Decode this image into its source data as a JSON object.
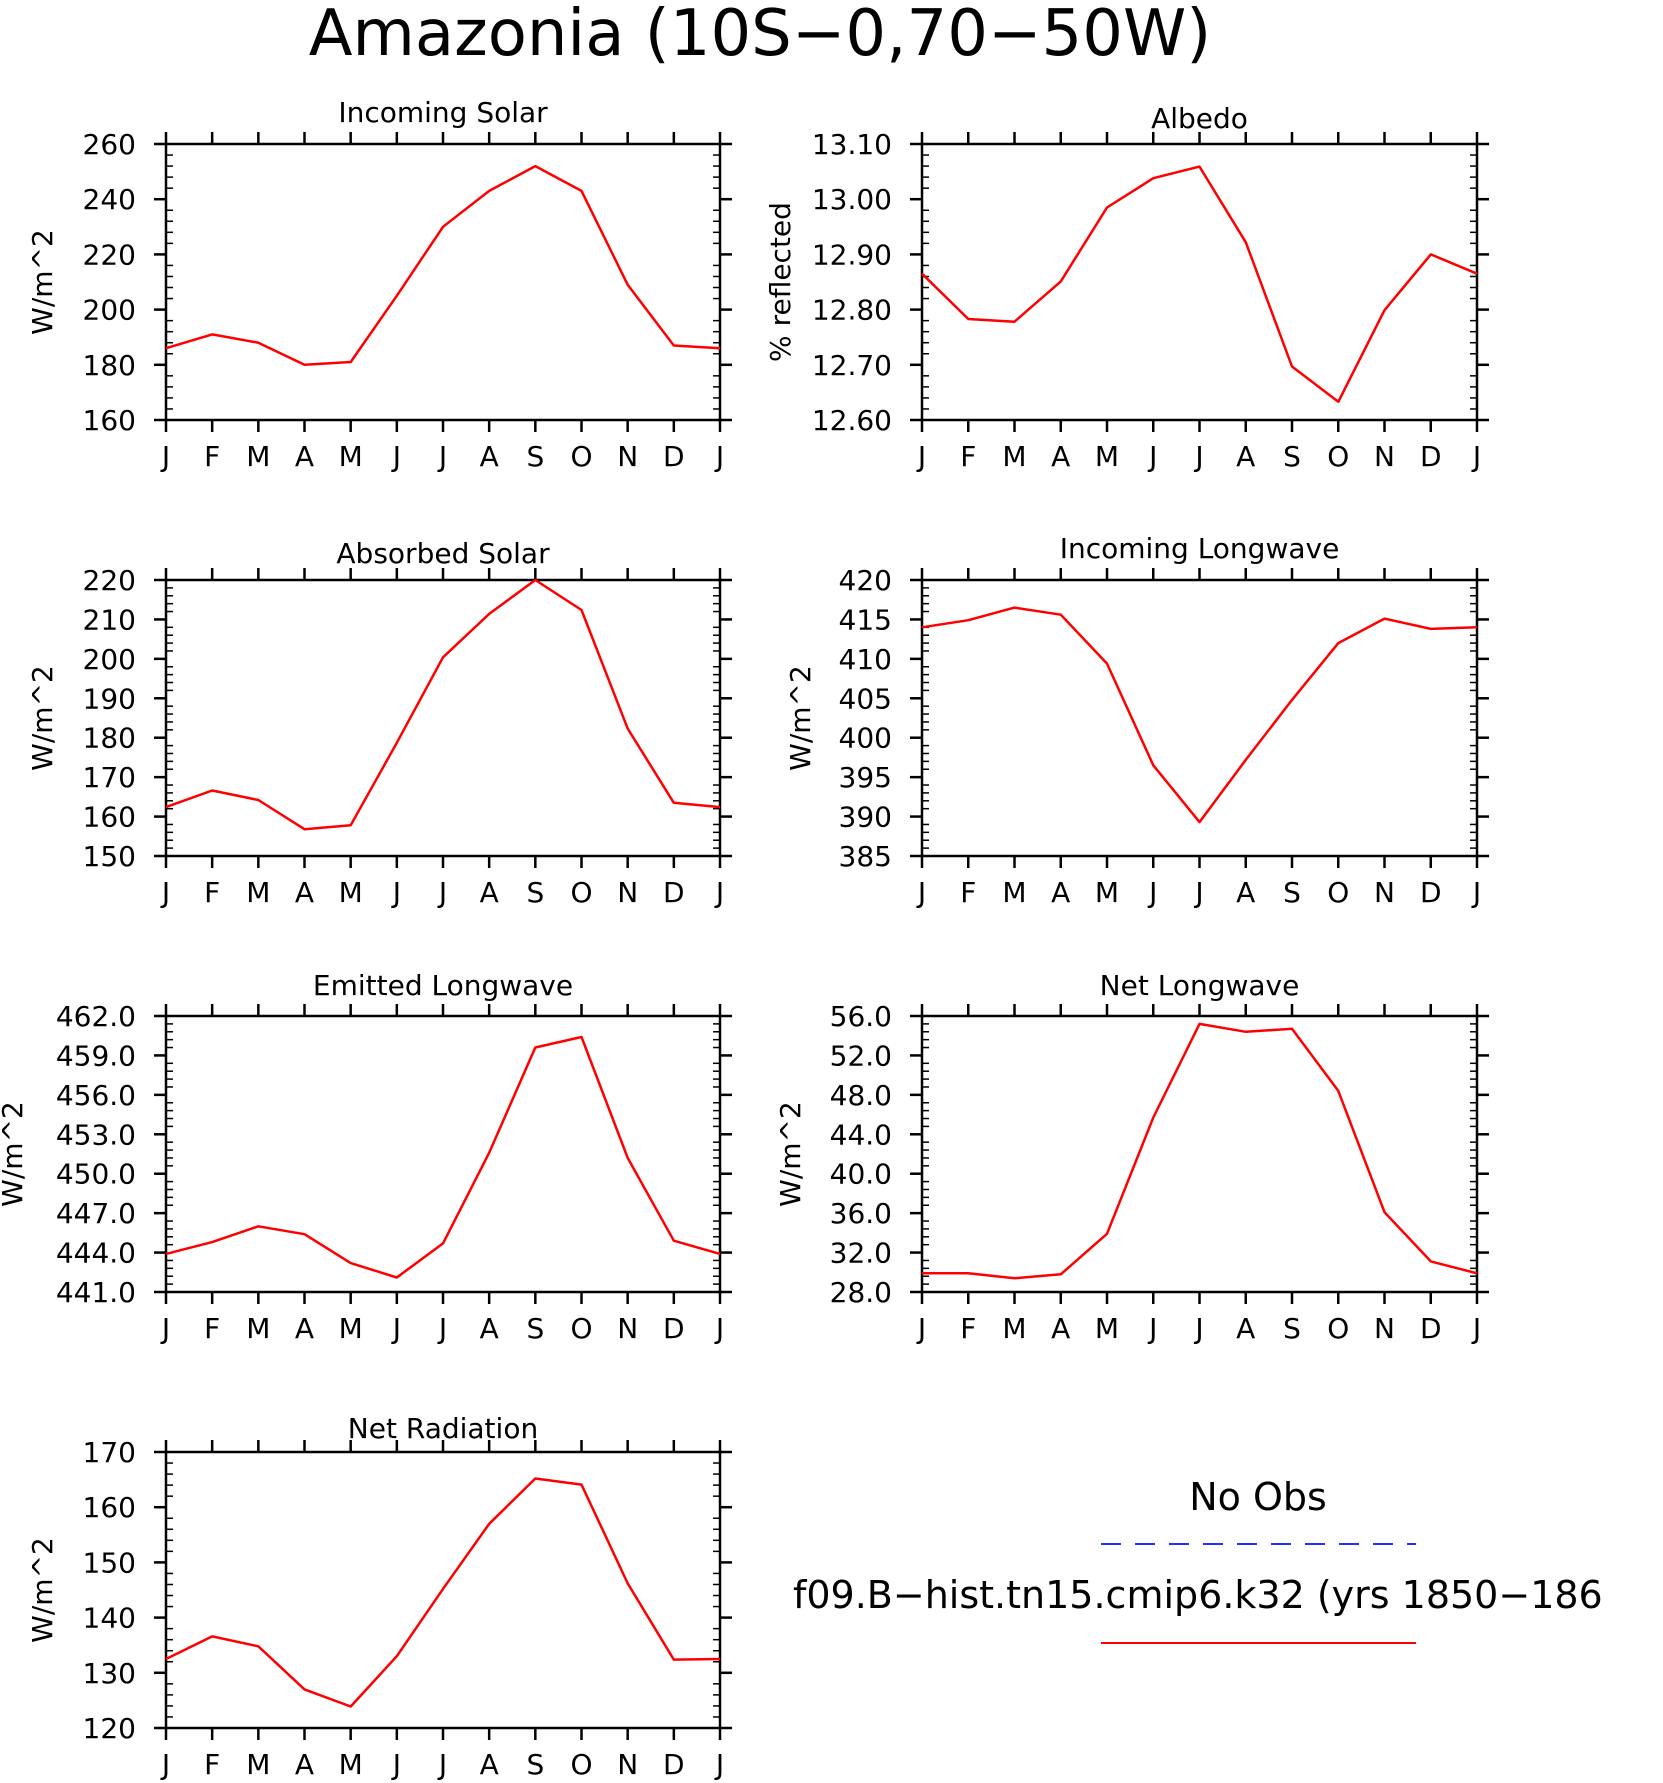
{
  "figure": {
    "title": "Amazonia (10S−0,70−50W)",
    "legend": {
      "entries": [
        {
          "label": "No Obs",
          "color": "#2030ff",
          "dash": "dashed"
        },
        {
          "label": "f09.B−hist.tn15.cmip6.k32 (yrs 1850−186",
          "color": "#ff0000",
          "dash": "solid"
        }
      ]
    }
  },
  "chart_data": [
    {
      "type": "line",
      "title": "Incoming Solar",
      "ylabel": "W/m^2",
      "xlabel": "",
      "categories": [
        "J",
        "F",
        "M",
        "A",
        "M",
        "J",
        "J",
        "A",
        "S",
        "O",
        "N",
        "D",
        "J"
      ],
      "ylim": [
        160,
        260
      ],
      "yticks": [
        "160",
        "180",
        "200",
        "220",
        "240",
        "260"
      ],
      "series": [
        {
          "color": "#ff0000",
          "values": [
            186,
            191,
            188,
            180,
            181,
            205,
            230,
            243,
            252,
            243,
            209,
            187,
            186
          ]
        }
      ]
    },
    {
      "type": "line",
      "title": "Albedo",
      "ylabel": "% reflected",
      "xlabel": "",
      "categories": [
        "J",
        "F",
        "M",
        "A",
        "M",
        "J",
        "J",
        "A",
        "S",
        "O",
        "N",
        "D",
        "J"
      ],
      "ylim": [
        12.6,
        13.1
      ],
      "yticks": [
        "12.60",
        "12.70",
        "12.80",
        "12.90",
        "13.00",
        "13.10"
      ],
      "series": [
        {
          "color": "#ff0000",
          "values": [
            12.865,
            12.783,
            12.778,
            12.851,
            12.985,
            13.038,
            13.059,
            12.922,
            12.697,
            12.633,
            12.799,
            12.9,
            12.865
          ]
        }
      ]
    },
    {
      "type": "line",
      "title": "Absorbed Solar",
      "ylabel": "W/m^2",
      "xlabel": "",
      "categories": [
        "J",
        "F",
        "M",
        "A",
        "M",
        "J",
        "J",
        "A",
        "S",
        "O",
        "N",
        "D",
        "J"
      ],
      "ylim": [
        150,
        220
      ],
      "yticks": [
        "150",
        "160",
        "170",
        "180",
        "190",
        "200",
        "210",
        "220"
      ],
      "series": [
        {
          "color": "#ff0000",
          "values": [
            162.4,
            166.6,
            164.2,
            156.8,
            157.8,
            178.7,
            200.4,
            211.4,
            220,
            212.4,
            182.3,
            163.5,
            162.4
          ]
        }
      ]
    },
    {
      "type": "line",
      "title": "Incoming Longwave",
      "ylabel": "W/m^2",
      "xlabel": "",
      "categories": [
        "J",
        "F",
        "M",
        "A",
        "M",
        "J",
        "J",
        "A",
        "S",
        "O",
        "N",
        "D",
        "J"
      ],
      "ylim": [
        385,
        420
      ],
      "yticks": [
        "385",
        "390",
        "395",
        "400",
        "405",
        "410",
        "415",
        "420"
      ],
      "series": [
        {
          "color": "#ff0000",
          "values": [
            414.0,
            414.9,
            416.5,
            415.6,
            409.4,
            396.5,
            389.3,
            397.2,
            404.8,
            412.0,
            415.1,
            413.8,
            414.0
          ]
        }
      ]
    },
    {
      "type": "line",
      "title": "Emitted Longwave",
      "ylabel": "W/m^2",
      "xlabel": "",
      "categories": [
        "J",
        "F",
        "M",
        "A",
        "M",
        "J",
        "J",
        "A",
        "S",
        "O",
        "N",
        "D",
        "J"
      ],
      "ylim": [
        441,
        462
      ],
      "yticks": [
        "441.0",
        "444.0",
        "447.0",
        "450.0",
        "453.0",
        "456.0",
        "459.0",
        "462.0"
      ],
      "series": [
        {
          "color": "#ff0000",
          "values": [
            443.9,
            444.8,
            446.0,
            445.4,
            443.2,
            442.1,
            444.7,
            451.6,
            459.6,
            460.4,
            451.2,
            444.9,
            443.9
          ]
        }
      ]
    },
    {
      "type": "line",
      "title": "Net Longwave",
      "ylabel": "W/m^2",
      "xlabel": "",
      "categories": [
        "J",
        "F",
        "M",
        "A",
        "M",
        "J",
        "J",
        "A",
        "S",
        "O",
        "N",
        "D",
        "J"
      ],
      "ylim": [
        28,
        56
      ],
      "yticks": [
        "28.0",
        "32.0",
        "36.0",
        "40.0",
        "44.0",
        "48.0",
        "52.0",
        "56.0"
      ],
      "series": [
        {
          "color": "#ff0000",
          "values": [
            29.9,
            29.9,
            29.4,
            29.8,
            33.9,
            45.7,
            55.2,
            54.4,
            54.7,
            48.4,
            36.1,
            31.1,
            29.9
          ]
        }
      ]
    },
    {
      "type": "line",
      "title": "Net Radiation",
      "ylabel": "W/m^2",
      "xlabel": "",
      "categories": [
        "J",
        "F",
        "M",
        "A",
        "M",
        "J",
        "J",
        "A",
        "S",
        "O",
        "N",
        "D",
        "J"
      ],
      "ylim": [
        120,
        170
      ],
      "yticks": [
        "120",
        "130",
        "140",
        "150",
        "160",
        "170"
      ],
      "series": [
        {
          "color": "#ff0000",
          "values": [
            132.5,
            136.6,
            134.8,
            127.0,
            123.9,
            133.0,
            145.2,
            157.0,
            165.2,
            164.1,
            146.2,
            132.4,
            132.5
          ]
        }
      ]
    }
  ]
}
